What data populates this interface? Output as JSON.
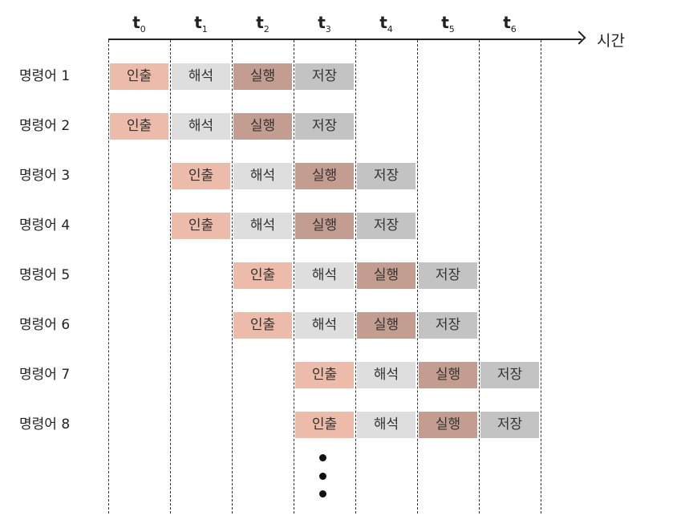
{
  "axis": {
    "title": "시간"
  },
  "time_labels": [
    {
      "t": "t",
      "sub": "0"
    },
    {
      "t": "t",
      "sub": "1"
    },
    {
      "t": "t",
      "sub": "2"
    },
    {
      "t": "t",
      "sub": "3"
    },
    {
      "t": "t",
      "sub": "4"
    },
    {
      "t": "t",
      "sub": "5"
    },
    {
      "t": "t",
      "sub": "6"
    }
  ],
  "stages": [
    "인출",
    "해석",
    "실행",
    "저장"
  ],
  "instructions": [
    {
      "label": "명령어 1",
      "start": 0
    },
    {
      "label": "명령어 2",
      "start": 0
    },
    {
      "label": "명령어 3",
      "start": 1
    },
    {
      "label": "명령어 4",
      "start": 1
    },
    {
      "label": "명령어 5",
      "start": 2
    },
    {
      "label": "명령어 6",
      "start": 2
    },
    {
      "label": "명령어 7",
      "start": 3
    },
    {
      "label": "명령어 8",
      "start": 3
    }
  ],
  "colors": {
    "fetch": "#ecbba9",
    "decode": "#dedede",
    "execute": "#c49d91",
    "store": "#c3c3c3"
  }
}
